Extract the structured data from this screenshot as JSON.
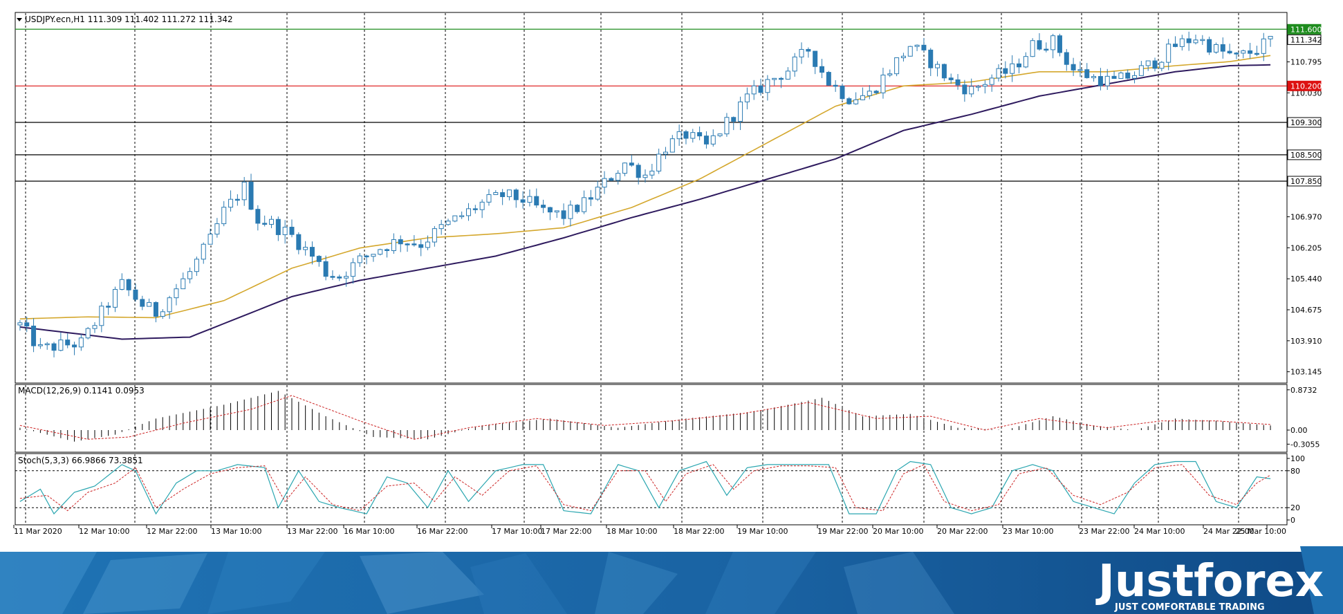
{
  "chart_data": [
    {
      "type": "candlestick",
      "title": "USDJPY.ecn,H1  111.309 111.402 111.272 111.342",
      "symbol": "USDJPY.ecn",
      "timeframe": "H1",
      "last_ohlc": {
        "open": 111.309,
        "high": 111.402,
        "low": 111.272,
        "close": 111.342
      },
      "ylim": [
        102.9,
        111.98
      ],
      "y_ticks": [
        "111.600",
        "111.342",
        "110.795",
        "110.200",
        "110.030",
        "109.300",
        "108.500",
        "107.850",
        "106.970",
        "106.205",
        "105.440",
        "104.675",
        "103.910",
        "103.145"
      ],
      "x_ticks": [
        "11 Mar 2020",
        "12 Mar 10:00",
        "12 Mar 22:00",
        "13 Mar 10:00",
        "13 Mar 22:00",
        "16 Mar 10:00",
        "16 Mar 22:00",
        "17 Mar 10:00",
        "17 Mar 22:00",
        "18 Mar 10:00",
        "18 Mar 22:00",
        "19 Mar 10:00",
        "19 Mar 22:00",
        "20 Mar 10:00",
        "20 Mar 22:00",
        "23 Mar 10:00",
        "23 Mar 22:00",
        "24 Mar 10:00",
        "24 Mar 22:00",
        "25 Mar 10:00"
      ],
      "close_path": [
        [
          0,
          104.3
        ],
        [
          3,
          103.7
        ],
        [
          6,
          103.8
        ],
        [
          9,
          103.85
        ],
        [
          12,
          104.6
        ],
        [
          15,
          105.3
        ],
        [
          18,
          104.8
        ],
        [
          20,
          104.6
        ],
        [
          22,
          105.0
        ],
        [
          25,
          105.6
        ],
        [
          28,
          106.4
        ],
        [
          30,
          107.1
        ],
        [
          33,
          107.7
        ],
        [
          35,
          106.9
        ],
        [
          37,
          106.8
        ],
        [
          40,
          106.5
        ],
        [
          43,
          106.0
        ],
        [
          45,
          105.6
        ],
        [
          47,
          105.5
        ],
        [
          50,
          105.9
        ],
        [
          53,
          106.2
        ],
        [
          56,
          106.4
        ],
        [
          59,
          106.3
        ],
        [
          62,
          106.7
        ],
        [
          65,
          107.0
        ],
        [
          68,
          107.3
        ],
        [
          71,
          107.5
        ],
        [
          74,
          107.4
        ],
        [
          77,
          107.1
        ],
        [
          80,
          107.0
        ],
        [
          83,
          107.3
        ],
        [
          86,
          107.8
        ],
        [
          89,
          108.3
        ],
        [
          92,
          108.0
        ],
        [
          95,
          108.7
        ],
        [
          98,
          109.0
        ],
        [
          101,
          108.7
        ],
        [
          104,
          109.3
        ],
        [
          107,
          109.9
        ],
        [
          110,
          110.3
        ],
        [
          113,
          110.6
        ],
        [
          116,
          111.1
        ],
        [
          119,
          110.3
        ],
        [
          122,
          109.9
        ],
        [
          125,
          110.0
        ],
        [
          128,
          110.6
        ],
        [
          131,
          111.2
        ],
        [
          134,
          110.8
        ],
        [
          137,
          110.3
        ],
        [
          140,
          110.1
        ],
        [
          143,
          110.4
        ],
        [
          146,
          110.6
        ],
        [
          149,
          111.2
        ],
        [
          152,
          111.3
        ],
        [
          155,
          110.6
        ],
        [
          158,
          110.4
        ],
        [
          161,
          110.3
        ],
        [
          164,
          110.5
        ],
        [
          167,
          110.8
        ],
        [
          170,
          111.2
        ],
        [
          173,
          111.4
        ],
        [
          176,
          111.1
        ],
        [
          179,
          110.9
        ],
        [
          182,
          111.1
        ],
        [
          184,
          111.34
        ]
      ],
      "series": [
        {
          "name": "",
          "color": "#d4a72c",
          "values": [
            [
              0,
              104.45
            ],
            [
              10,
              104.5
            ],
            [
              20,
              104.48
            ],
            [
              30,
              104.9
            ],
            [
              40,
              105.7
            ],
            [
              50,
              106.2
            ],
            [
              60,
              106.45
            ],
            [
              70,
              106.55
            ],
            [
              80,
              106.7
            ],
            [
              90,
              107.2
            ],
            [
              100,
              107.9
            ],
            [
              110,
              108.8
            ],
            [
              120,
              109.7
            ],
            [
              130,
              110.2
            ],
            [
              140,
              110.3
            ],
            [
              150,
              110.55
            ],
            [
              160,
              110.55
            ],
            [
              170,
              110.7
            ],
            [
              178,
              110.8
            ],
            [
              184,
              110.95
            ]
          ]
        },
        {
          "name": "",
          "color": "#2e1a5e",
          "values": [
            [
              0,
              104.25
            ],
            [
              15,
              103.95
            ],
            [
              25,
              104.0
            ],
            [
              40,
              105.0
            ],
            [
              50,
              105.4
            ],
            [
              60,
              105.7
            ],
            [
              70,
              106.0
            ],
            [
              80,
              106.45
            ],
            [
              90,
              106.95
            ],
            [
              100,
              107.4
            ],
            [
              110,
              107.9
            ],
            [
              120,
              108.4
            ],
            [
              130,
              109.1
            ],
            [
              140,
              109.5
            ],
            [
              150,
              109.95
            ],
            [
              160,
              110.25
            ],
            [
              170,
              110.55
            ],
            [
              178,
              110.7
            ],
            [
              184,
              110.72
            ]
          ]
        }
      ],
      "levels": [
        {
          "price": 111.6,
          "label": "111.600",
          "color": "#1e8c1e"
        },
        {
          "price": 110.2,
          "label": "110.200",
          "color": "#dd1111"
        },
        {
          "price": 109.3,
          "label": "109.300",
          "color": "#000000"
        },
        {
          "price": 108.5,
          "label": "108.500",
          "color": "#000000"
        },
        {
          "price": 107.85,
          "label": "107.850",
          "color": "#000000"
        }
      ],
      "bull_color": "#ffffff",
      "bear_color": "#2a7ab2",
      "wick_color": "#2a7ab2",
      "grid": "vertical-dotted"
    },
    {
      "type": "bar",
      "title": "MACD(12,26,9) 0.1141 0.0953",
      "params": "12,26,9",
      "main_value": 0.1141,
      "signal_value": 0.0953,
      "ylim": [
        -0.42,
        0.93
      ],
      "y_ticks": [
        "0.8732",
        "0.00",
        "-0.3055"
      ],
      "main_path": [
        [
          0,
          0.05
        ],
        [
          8,
          -0.25
        ],
        [
          14,
          -0.1
        ],
        [
          20,
          0.25
        ],
        [
          30,
          0.55
        ],
        [
          38,
          0.85
        ],
        [
          45,
          0.3
        ],
        [
          52,
          -0.15
        ],
        [
          60,
          -0.2
        ],
        [
          68,
          0.1
        ],
        [
          78,
          0.25
        ],
        [
          88,
          0.05
        ],
        [
          98,
          0.25
        ],
        [
          108,
          0.4
        ],
        [
          118,
          0.7
        ],
        [
          124,
          0.3
        ],
        [
          131,
          0.35
        ],
        [
          138,
          0.05
        ],
        [
          145,
          0.0
        ],
        [
          152,
          0.3
        ],
        [
          158,
          0.1
        ],
        [
          164,
          0.0
        ],
        [
          170,
          0.25
        ],
        [
          176,
          0.2
        ],
        [
          184,
          0.1
        ]
      ],
      "signal_path": [
        [
          0,
          0.1
        ],
        [
          10,
          -0.2
        ],
        [
          16,
          -0.15
        ],
        [
          24,
          0.15
        ],
        [
          34,
          0.45
        ],
        [
          40,
          0.75
        ],
        [
          50,
          0.2
        ],
        [
          58,
          -0.2
        ],
        [
          66,
          0.05
        ],
        [
          76,
          0.25
        ],
        [
          86,
          0.1
        ],
        [
          96,
          0.2
        ],
        [
          106,
          0.35
        ],
        [
          116,
          0.6
        ],
        [
          126,
          0.25
        ],
        [
          134,
          0.3
        ],
        [
          142,
          0.0
        ],
        [
          150,
          0.25
        ],
        [
          160,
          0.05
        ],
        [
          168,
          0.2
        ],
        [
          176,
          0.2
        ],
        [
          184,
          0.12
        ]
      ],
      "histogram_color": "#000000",
      "signal_color": "#cc2222"
    },
    {
      "type": "line",
      "title": "Stoch(5,3,3) 66.9866 73.3851",
      "params": "5,3,3",
      "k_value": 66.9866,
      "d_value": 73.3851,
      "ylim": [
        0,
        100
      ],
      "y_ticks": [
        "100",
        "80",
        "20",
        "0"
      ],
      "levels": [
        80,
        20
      ],
      "k_path": [
        [
          0,
          30
        ],
        [
          3,
          50
        ],
        [
          5,
          10
        ],
        [
          8,
          45
        ],
        [
          11,
          55
        ],
        [
          15,
          90
        ],
        [
          17,
          80
        ],
        [
          20,
          10
        ],
        [
          23,
          60
        ],
        [
          26,
          80
        ],
        [
          29,
          80
        ],
        [
          32,
          90
        ],
        [
          36,
          85
        ],
        [
          38,
          20
        ],
        [
          41,
          80
        ],
        [
          44,
          30
        ],
        [
          47,
          20
        ],
        [
          51,
          10
        ],
        [
          54,
          70
        ],
        [
          57,
          60
        ],
        [
          60,
          20
        ],
        [
          63,
          80
        ],
        [
          66,
          30
        ],
        [
          70,
          80
        ],
        [
          74,
          90
        ],
        [
          77,
          90
        ],
        [
          80,
          15
        ],
        [
          84,
          10
        ],
        [
          88,
          90
        ],
        [
          91,
          80
        ],
        [
          94,
          20
        ],
        [
          97,
          80
        ],
        [
          101,
          95
        ],
        [
          104,
          40
        ],
        [
          107,
          85
        ],
        [
          110,
          90
        ],
        [
          113,
          90
        ],
        [
          116,
          90
        ],
        [
          119,
          90
        ],
        [
          122,
          10
        ],
        [
          126,
          10
        ],
        [
          129,
          80
        ],
        [
          131,
          95
        ],
        [
          134,
          90
        ],
        [
          137,
          20
        ],
        [
          140,
          10
        ],
        [
          143,
          20
        ],
        [
          146,
          80
        ],
        [
          149,
          90
        ],
        [
          152,
          80
        ],
        [
          155,
          30
        ],
        [
          158,
          20
        ],
        [
          161,
          10
        ],
        [
          164,
          60
        ],
        [
          167,
          90
        ],
        [
          170,
          95
        ],
        [
          173,
          95
        ],
        [
          176,
          30
        ],
        [
          179,
          20
        ],
        [
          182,
          70
        ],
        [
          184,
          67
        ]
      ],
      "d_path": [
        [
          0,
          35
        ],
        [
          4,
          40
        ],
        [
          7,
          15
        ],
        [
          10,
          45
        ],
        [
          14,
          60
        ],
        [
          17,
          85
        ],
        [
          20,
          20
        ],
        [
          24,
          50
        ],
        [
          28,
          75
        ],
        [
          32,
          85
        ],
        [
          36,
          88
        ],
        [
          39,
          30
        ],
        [
          42,
          70
        ],
        [
          46,
          25
        ],
        [
          50,
          15
        ],
        [
          54,
          55
        ],
        [
          58,
          60
        ],
        [
          61,
          30
        ],
        [
          64,
          70
        ],
        [
          68,
          40
        ],
        [
          72,
          80
        ],
        [
          76,
          88
        ],
        [
          80,
          25
        ],
        [
          84,
          15
        ],
        [
          88,
          80
        ],
        [
          92,
          80
        ],
        [
          95,
          30
        ],
        [
          98,
          75
        ],
        [
          102,
          90
        ],
        [
          105,
          50
        ],
        [
          108,
          80
        ],
        [
          112,
          88
        ],
        [
          116,
          88
        ],
        [
          120,
          85
        ],
        [
          123,
          20
        ],
        [
          127,
          15
        ],
        [
          130,
          75
        ],
        [
          133,
          90
        ],
        [
          136,
          30
        ],
        [
          140,
          15
        ],
        [
          144,
          25
        ],
        [
          147,
          75
        ],
        [
          151,
          85
        ],
        [
          155,
          40
        ],
        [
          159,
          25
        ],
        [
          163,
          45
        ],
        [
          167,
          85
        ],
        [
          171,
          90
        ],
        [
          175,
          40
        ],
        [
          179,
          25
        ],
        [
          182,
          60
        ],
        [
          184,
          73
        ]
      ],
      "k_color": "#2aa6b0",
      "d_color": "#cc2222"
    }
  ],
  "brand": {
    "name": "Justforex",
    "tagline": "JUST COMFORTABLE TRADING"
  }
}
